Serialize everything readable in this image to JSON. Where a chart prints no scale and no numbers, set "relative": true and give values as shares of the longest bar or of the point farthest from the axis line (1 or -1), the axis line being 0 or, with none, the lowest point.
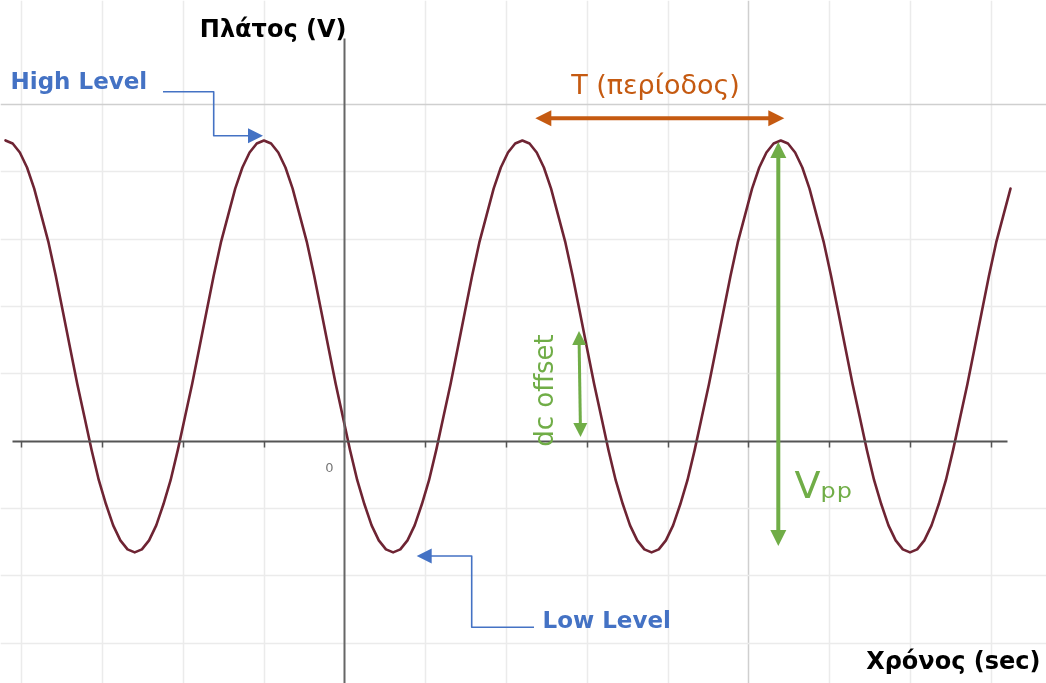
{
  "chart_data": {
    "type": "line",
    "xlabel": "Χρόνος (sec)",
    "ylabel": "Πλάτος (V)",
    "relative": true,
    "grid": true,
    "line_style": "solid",
    "categories": [
      null,
      null,
      null,
      null,
      null,
      null,
      null,
      null,
      null,
      null,
      null,
      null,
      null,
      null,
      null,
      null,
      null,
      null,
      null,
      null,
      null,
      null,
      null,
      null,
      null,
      null,
      null,
      null,
      null,
      null,
      null,
      null,
      null,
      null,
      null,
      null,
      null,
      null,
      null,
      null,
      null,
      null,
      null,
      null,
      null,
      null,
      null,
      null,
      null,
      null,
      null,
      null,
      null,
      null,
      null,
      null,
      null,
      null,
      null,
      null,
      null,
      null,
      null,
      null,
      null,
      null,
      null,
      null,
      null,
      null,
      null,
      null,
      null,
      null,
      null,
      null,
      null,
      null,
      null,
      null,
      null,
      null,
      null,
      null,
      null,
      null,
      null,
      null,
      null,
      null,
      null,
      null,
      null,
      null,
      null,
      null,
      null,
      null,
      null,
      null,
      null,
      null,
      null,
      null,
      null,
      null,
      null,
      null,
      null,
      null,
      null,
      null,
      null,
      null,
      null,
      null,
      null,
      null,
      null,
      null,
      null,
      null,
      null,
      null,
      null,
      null,
      null,
      null,
      null,
      null,
      null,
      null,
      null,
      null,
      null,
      null,
      null,
      null,
      null,
      null,
      null
    ],
    "series": [
      {
        "color": "#6e2433",
        "values": [
          1,
          0.99,
          0.96,
          0.91,
          0.84,
          0.75,
          0.66,
          0.55,
          0.43,
          0.31,
          0.19,
          0.08,
          -0.03,
          -0.13,
          -0.21,
          -0.28,
          -0.33,
          -0.36,
          -0.37,
          -0.36,
          -0.33,
          -0.28,
          -0.21,
          -0.13,
          -0.03,
          0.08,
          0.19,
          0.31,
          0.43,
          0.55,
          0.66,
          0.75,
          0.84,
          0.91,
          0.96,
          0.99,
          1,
          0.99,
          0.96,
          0.91,
          0.84,
          0.75,
          0.66,
          0.55,
          0.43,
          0.31,
          0.19,
          0.08,
          -0.03,
          -0.13,
          -0.21,
          -0.28,
          -0.33,
          -0.36,
          -0.37,
          -0.36,
          -0.33,
          -0.28,
          -0.21,
          -0.13,
          -0.03,
          0.08,
          0.19,
          0.31,
          0.43,
          0.55,
          0.66,
          0.75,
          0.84,
          0.91,
          0.96,
          0.99,
          1,
          0.99,
          0.96,
          0.91,
          0.84,
          0.75,
          0.66,
          0.55,
          0.43,
          0.31,
          0.19,
          0.08,
          -0.03,
          -0.13,
          -0.21,
          -0.28,
          -0.33,
          -0.36,
          -0.37,
          -0.36,
          -0.33,
          -0.28,
          -0.21,
          -0.13,
          -0.03,
          0.08,
          0.19,
          0.31,
          0.43,
          0.55,
          0.66,
          0.75,
          0.84,
          0.91,
          0.96,
          0.99,
          1,
          0.99,
          0.96,
          0.91,
          0.84,
          0.75,
          0.66,
          0.55,
          0.43,
          0.31,
          0.19,
          0.08,
          -0.03,
          -0.13,
          -0.21,
          -0.28,
          -0.33,
          -0.36,
          -0.37,
          -0.36,
          -0.33,
          -0.28,
          -0.21,
          -0.13,
          -0.03,
          0.08,
          0.19,
          0.31,
          0.43,
          0.55,
          0.66,
          0.75,
          0.84
        ]
      }
    ],
    "annotations": [
      "0",
      "High Level",
      "Low Level",
      "T (περίοδος)",
      "dc offset",
      "Vₚₚ"
    ]
  }
}
